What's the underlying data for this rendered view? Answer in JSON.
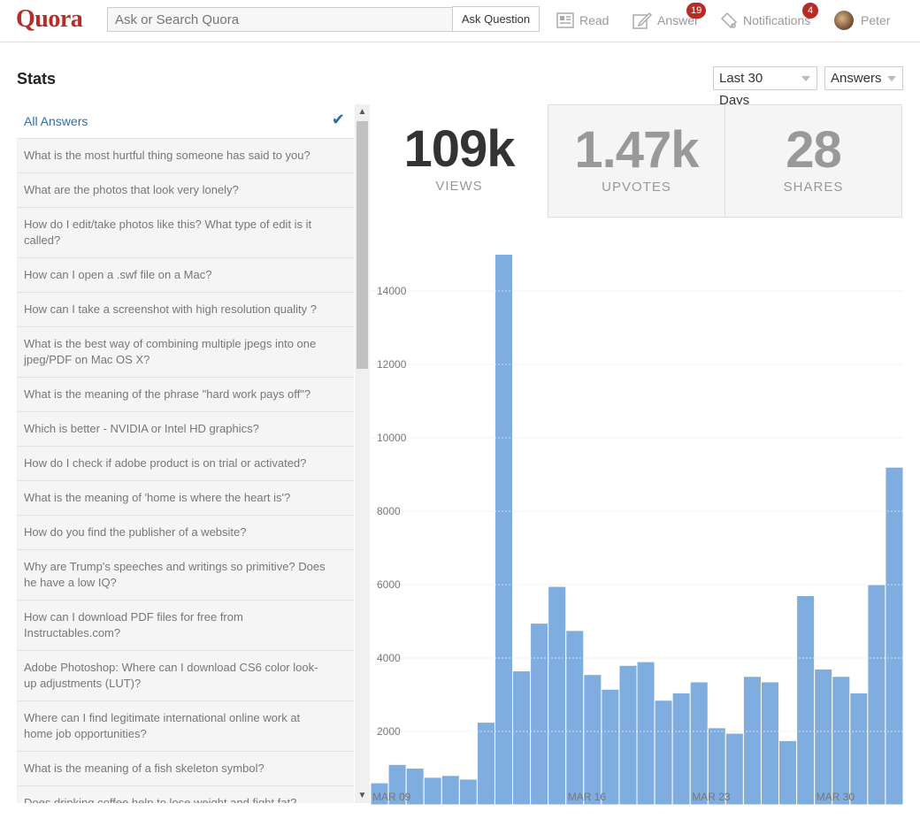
{
  "header": {
    "logo": "Quora",
    "search_placeholder": "Ask or Search Quora",
    "ask_button": "Ask Question",
    "nav": {
      "read": "Read",
      "answer": "Answer",
      "answer_badge": "19",
      "notifications": "Notifications",
      "notifications_badge": "4",
      "user": "Peter"
    }
  },
  "stats": {
    "title": "Stats",
    "range_select": "Last 30 Days",
    "type_select": "Answers"
  },
  "list": {
    "all_label": "All Answers",
    "items": [
      "What is the most hurtful thing someone has said to you?",
      "What are the photos that look very lonely?",
      "How do I edit/take photos like this? What type of edit is it called?",
      "How can I open a .swf file on a Mac?",
      "How can I take a screenshot with high resolution quality ?",
      "What is the best way of combining multiple jpegs into one jpeg/PDF on Mac OS X?",
      "What is the meaning of the phrase \"hard work pays off\"?",
      "Which is better - NVIDIA or Intel HD graphics?",
      "How do I check if adobe product is on trial or activated?",
      "What is the meaning of 'home is where the heart is'?",
      "How do you find the publisher of a website?",
      "Why are Trump's speeches and writings so primitive? Does he have a low IQ?",
      "How can I download PDF files for free from Instructables.com?",
      "Adobe Photoshop: Where can I download CS6 color look-up adjustments (LUT)?",
      "Where can I find legitimate international online work at home job opportunities?",
      "What is the meaning of a fish skeleton symbol?",
      "Does drinking coffee help to lose weight and fight fat?"
    ]
  },
  "metrics": [
    {
      "value": "109k",
      "label": "VIEWS"
    },
    {
      "value": "1.47k",
      "label": "UPVOTES"
    },
    {
      "value": "28",
      "label": "SHARES"
    }
  ],
  "colors": {
    "brand": "#b92b27",
    "bar": "#80ade0",
    "link": "#2b6dad"
  },
  "chart_data": {
    "type": "bar",
    "title": "",
    "xlabel": "",
    "ylabel": "",
    "ylim": [
      0,
      16000
    ],
    "yticks": [
      2000,
      4000,
      6000,
      8000,
      10000,
      12000,
      14000
    ],
    "x_tick_labels": [
      {
        "index": 0,
        "label": "MAR 09"
      },
      {
        "index": 11,
        "label": "MAR 16"
      },
      {
        "index": 18,
        "label": "MAR 23"
      },
      {
        "index": 25,
        "label": "MAR 30"
      }
    ],
    "values": [
      600,
      1100,
      1000,
      750,
      800,
      700,
      2250,
      15000,
      3650,
      4950,
      5950,
      4750,
      3550,
      3150,
      3800,
      3900,
      2850,
      3050,
      3350,
      2100,
      1950,
      3500,
      3350,
      1750,
      5700,
      3700,
      3500,
      3050,
      6000,
      9200
    ]
  }
}
